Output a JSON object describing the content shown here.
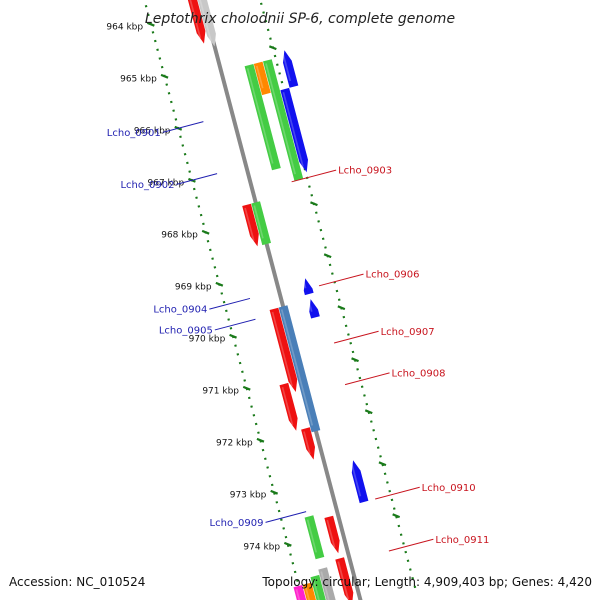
{
  "title": "Leptothrix cholodnii SP-6, complete genome",
  "footer": {
    "accession": "Accession: NC_010524",
    "topology": "Topology: circular; Length: 4,909,403 bp; Genes: 4,420"
  },
  "colors": {
    "backbone": "#888888",
    "tick": "#1a7a1a",
    "left_label": "#1f1fb0",
    "right_label": "#c8141e"
  },
  "scale_ticks": [
    {
      "kbp": 964,
      "label": "964 kbp"
    },
    {
      "kbp": 965,
      "label": "965 kbp"
    },
    {
      "kbp": 966,
      "label": "966 kbp"
    },
    {
      "kbp": 967,
      "label": "967 kbp"
    },
    {
      "kbp": 968,
      "label": "968 kbp"
    },
    {
      "kbp": 969,
      "label": "969 kbp"
    },
    {
      "kbp": 970,
      "label": "970 kbp"
    },
    {
      "kbp": 971,
      "label": "971 kbp"
    },
    {
      "kbp": 972,
      "label": "972 kbp"
    },
    {
      "kbp": 973,
      "label": "973 kbp"
    },
    {
      "kbp": 974,
      "label": "974 kbp"
    }
  ],
  "gene_labels": [
    {
      "text": "Lcho_0901",
      "side": "left",
      "kbp": 966.0
    },
    {
      "text": "Lcho_0902",
      "side": "left",
      "kbp": 967.0
    },
    {
      "text": "Lcho_0903",
      "side": "right",
      "kbp": 967.5
    },
    {
      "text": "Lcho_0904",
      "side": "left",
      "kbp": 969.4
    },
    {
      "text": "Lcho_0905",
      "side": "left",
      "kbp": 969.8
    },
    {
      "text": "Lcho_0906",
      "side": "right",
      "kbp": 969.5
    },
    {
      "text": "Lcho_0907",
      "side": "right",
      "kbp": 970.6
    },
    {
      "text": "Lcho_0908",
      "side": "right",
      "kbp": 971.4
    },
    {
      "text": "Lcho_0909",
      "side": "left",
      "kbp": 973.5
    },
    {
      "text": "Lcho_0910",
      "side": "right",
      "kbp": 973.6
    },
    {
      "text": "Lcho_0911",
      "side": "right",
      "kbp": 974.6
    }
  ],
  "features": [
    {
      "lane": -1,
      "start": 963.6,
      "end": 964.6,
      "strand": "-",
      "color": "#ee1111"
    },
    {
      "lane": 0,
      "start": 963.6,
      "end": 964.7,
      "strand": "-",
      "color": "#c8c8c8"
    },
    {
      "lane": 3,
      "start": 965.2,
      "end": 967.2,
      "strand": "none",
      "color": "#44cc44"
    },
    {
      "lane": 4,
      "start": 965.2,
      "end": 965.8,
      "strand": "none",
      "color": "#ff8800"
    },
    {
      "lane": 5,
      "start": 965.2,
      "end": 967.5,
      "strand": "none",
      "color": "#44cc44"
    },
    {
      "lane": 7,
      "start": 965.1,
      "end": 965.8,
      "strand": "+",
      "color": "#1111ee"
    },
    {
      "lane": 6,
      "start": 965.8,
      "end": 967.4,
      "strand": "-",
      "color": "#1111ee"
    },
    {
      "lane": -1,
      "start": 967.7,
      "end": 968.5,
      "strand": "-",
      "color": "#ee1111"
    },
    {
      "lane": 0,
      "start": 967.7,
      "end": 968.5,
      "strand": "none",
      "color": "#44cc44"
    },
    {
      "lane": 3,
      "start": 969.3,
      "end": 969.6,
      "strand": "+",
      "color": "#1111ee"
    },
    {
      "lane": 3,
      "start": 969.7,
      "end": 970.05,
      "strand": "+",
      "color": "#1111ee"
    },
    {
      "lane": -1,
      "start": 969.7,
      "end": 971.3,
      "strand": "-",
      "color": "#ee1111"
    },
    {
      "lane": 0,
      "start": 969.7,
      "end": 972.1,
      "strand": "none",
      "color": "#4a7fb8"
    },
    {
      "lane": -2,
      "start": 971.1,
      "end": 972.0,
      "strand": "-",
      "color": "#ee1111"
    },
    {
      "lane": -1,
      "start": 972.0,
      "end": 972.6,
      "strand": "-",
      "color": "#ee1111"
    },
    {
      "lane": 3,
      "start": 972.8,
      "end": 973.6,
      "strand": "+",
      "color": "#1111ee"
    },
    {
      "lane": -1,
      "start": 973.7,
      "end": 974.4,
      "strand": "-",
      "color": "#ee1111"
    },
    {
      "lane": -3,
      "start": 973.6,
      "end": 974.4,
      "strand": "none",
      "color": "#44cc44"
    },
    {
      "lane": -1,
      "start": 974.5,
      "end": 975.4,
      "strand": "-",
      "color": "#ee1111"
    },
    {
      "lane": -3,
      "start": 974.6,
      "end": 975.4,
      "strand": "none",
      "color": "#aaaaaa"
    },
    {
      "lane": -4,
      "start": 974.7,
      "end": 975.4,
      "strand": "none",
      "color": "#44cc44"
    },
    {
      "lane": -5,
      "start": 974.8,
      "end": 975.4,
      "strand": "none",
      "color": "#ff8800"
    },
    {
      "lane": -6,
      "start": 974.8,
      "end": 975.4,
      "strand": "none",
      "color": "#ff22cc"
    }
  ]
}
